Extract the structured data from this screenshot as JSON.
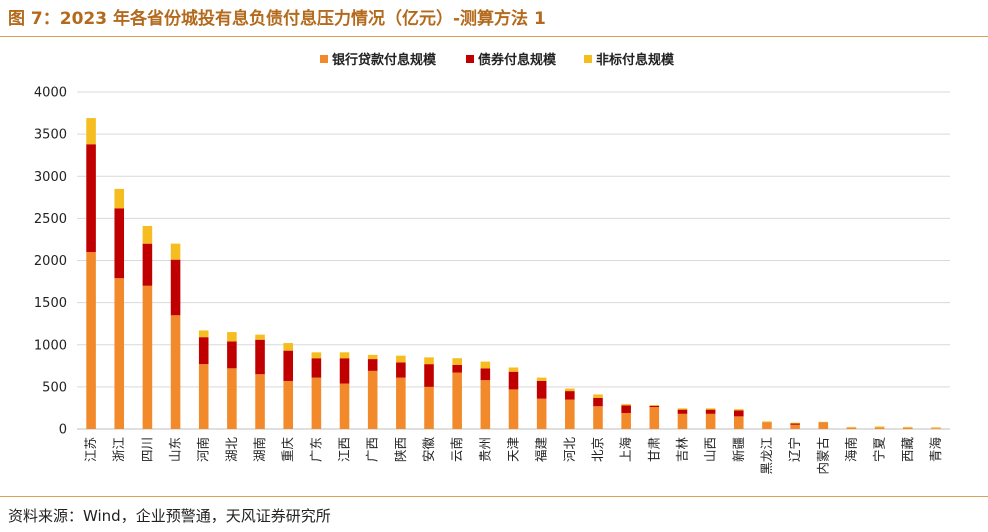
{
  "title": "图 7：2023 年各省份城投有息负债付息压力情况（亿元）-测算方法 1",
  "source": "资料来源：Wind，企业预警通，天风证券研究所",
  "chart_data": {
    "type": "bar",
    "stacked": true,
    "categories": [
      "江苏",
      "浙江",
      "四川",
      "山东",
      "河南",
      "湖北",
      "湖南",
      "重庆",
      "广东",
      "江西",
      "广西",
      "陕西",
      "安徽",
      "云南",
      "贵州",
      "天津",
      "福建",
      "河北",
      "北京",
      "上海",
      "甘肃",
      "吉林",
      "山西",
      "新疆",
      "黑龙江",
      "辽宁",
      "内蒙古",
      "海南",
      "宁夏",
      "西藏",
      "青海"
    ],
    "series": [
      {
        "name": "银行贷款付息规模",
        "color": "#f28a2c",
        "values": [
          2100,
          1790,
          1700,
          1350,
          770,
          720,
          650,
          570,
          610,
          540,
          690,
          610,
          500,
          670,
          580,
          470,
          360,
          350,
          270,
          190,
          260,
          180,
          180,
          150,
          70,
          50,
          70,
          15,
          20,
          15,
          10
        ]
      },
      {
        "name": "债券付息规模",
        "color": "#c00000",
        "values": [
          1280,
          830,
          500,
          660,
          320,
          320,
          410,
          360,
          230,
          300,
          140,
          180,
          270,
          90,
          140,
          210,
          210,
          100,
          100,
          90,
          15,
          50,
          50,
          70,
          5,
          15,
          5,
          0,
          0,
          0,
          0
        ]
      },
      {
        "name": "非标付息规模",
        "color": "#f5bd1f",
        "values": [
          310,
          230,
          210,
          190,
          80,
          110,
          60,
          90,
          70,
          70,
          50,
          80,
          80,
          80,
          80,
          50,
          40,
          30,
          40,
          15,
          10,
          15,
          15,
          15,
          15,
          10,
          10,
          10,
          10,
          10,
          10
        ]
      }
    ],
    "ylim": [
      0,
      4000
    ],
    "yticks": [
      0,
      500,
      1000,
      1500,
      2000,
      2500,
      3000,
      3500,
      4000
    ],
    "gridlines": true,
    "legend_position": "top-center"
  }
}
